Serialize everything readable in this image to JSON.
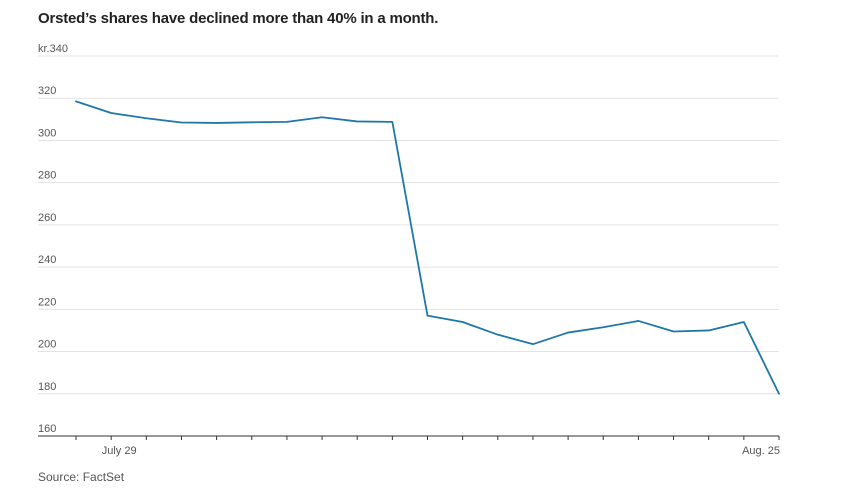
{
  "title": "Orsted’s shares have declined more than 40% in a month.",
  "source": "Source: FactSet",
  "chart_data": {
    "type": "line",
    "title": "Orsted’s shares have declined more than 40% in a month.",
    "xlabel": "",
    "ylabel": "",
    "ylim": [
      160,
      340
    ],
    "y_ticks": [
      160,
      180,
      200,
      220,
      240,
      260,
      280,
      300,
      320,
      340
    ],
    "y_tick_labels": [
      "160",
      "180",
      "200",
      "220",
      "240",
      "260",
      "280",
      "300",
      "320",
      "kr.340"
    ],
    "x_tick_labels": [
      {
        "index": 1,
        "label": "July 29"
      },
      {
        "index": 20,
        "label": "Aug. 25"
      }
    ],
    "grid": true,
    "legend": "none",
    "color": "#1f77a8",
    "series": [
      {
        "values": [
          318.5,
          313,
          310.5,
          308.5,
          308.3,
          308.6,
          308.8,
          311,
          309,
          308.8,
          217,
          214,
          208,
          203.5,
          209,
          211.5,
          214.5,
          209.5,
          210,
          214,
          180
        ]
      }
    ]
  }
}
